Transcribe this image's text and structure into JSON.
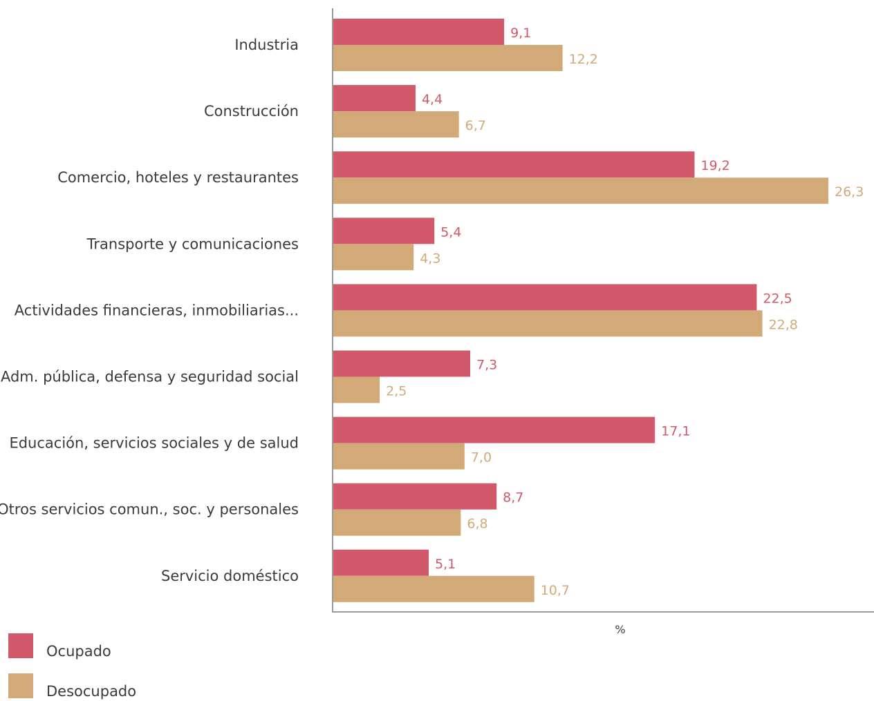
{
  "chart_data": {
    "type": "bar",
    "orientation": "horizontal",
    "categories": [
      "Industria",
      "Construcción",
      "Comercio, hoteles y restaurantes",
      "Transporte y comunicaciones",
      "Actividades financieras, inmobiliarias...",
      "Adm. pública, defensa y seguridad social",
      "Educación, servicios sociales y de salud",
      "Otros servicios comun., soc. y personales",
      "Servicio doméstico"
    ],
    "series": [
      {
        "name": "Ocupado",
        "color": "#d2596b",
        "values": [
          9.1,
          4.4,
          19.2,
          5.4,
          22.5,
          7.3,
          17.1,
          8.7,
          5.1
        ],
        "labels": [
          "9,1",
          "4,4",
          "19,2",
          "5,4",
          "22,5",
          "7,3",
          "17,1",
          "8,7",
          "5,1"
        ]
      },
      {
        "name": "Desocupado",
        "color": "#d1aa78",
        "values": [
          12.2,
          6.7,
          26.3,
          4.3,
          22.8,
          2.5,
          7.0,
          6.8,
          10.7
        ],
        "labels": [
          "12,2",
          "6,7",
          "26,3",
          "4,3",
          "22,8",
          "2,5",
          "7,0",
          "6,8",
          "10,7"
        ]
      }
    ],
    "xlabel": "%",
    "xlim": [
      0,
      28.5
    ],
    "grid": false,
    "legend_position": "bottom-left",
    "axis_color": "#9a9a9a"
  }
}
